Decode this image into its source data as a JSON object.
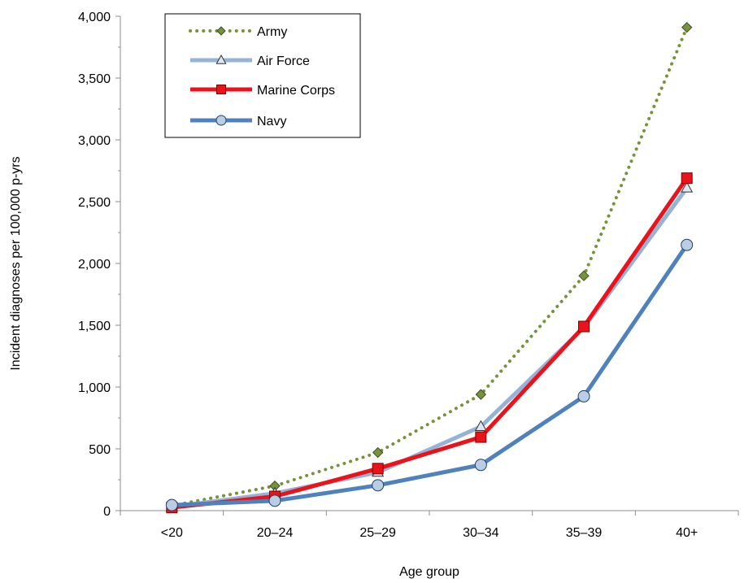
{
  "chart_data": {
    "type": "line",
    "title": "",
    "xlabel": "Age group",
    "ylabel": "Incident diagnoses per 100,000 p-yrs",
    "categories": [
      "<20",
      "20–24",
      "25–29",
      "30–34",
      "35–39",
      "40+"
    ],
    "ylim": [
      0,
      4000
    ],
    "yticks": [
      0,
      500,
      1000,
      1500,
      2000,
      2500,
      3000,
      3500,
      4000
    ],
    "ytick_labels": [
      "0",
      "500",
      "1,000",
      "1,500",
      "2,000",
      "2,500",
      "3,000",
      "3,500",
      "4,000"
    ],
    "grid": false,
    "legend_position": "top-left",
    "series": [
      {
        "name": "Army",
        "values": [
          40,
          200,
          470,
          940,
          1900,
          3910
        ],
        "color": "#76923C",
        "marker": "diamond",
        "line_style": "dotted",
        "marker_fill": "#76923C"
      },
      {
        "name": "Air Force",
        "values": [
          30,
          140,
          310,
          680,
          1480,
          2610
        ],
        "color": "#95B3D7",
        "marker": "triangle",
        "line_style": "solid",
        "marker_fill": "#DCE6F2"
      },
      {
        "name": "Marine Corps",
        "values": [
          25,
          115,
          340,
          595,
          1490,
          2690
        ],
        "color": "#E8131B",
        "marker": "square",
        "line_style": "solid",
        "marker_fill": "#E8131B"
      },
      {
        "name": "Navy",
        "values": [
          45,
          80,
          205,
          370,
          925,
          2150
        ],
        "color": "#4F81BD",
        "marker": "circle",
        "line_style": "solid",
        "marker_fill": "#B9CDE5"
      }
    ]
  }
}
